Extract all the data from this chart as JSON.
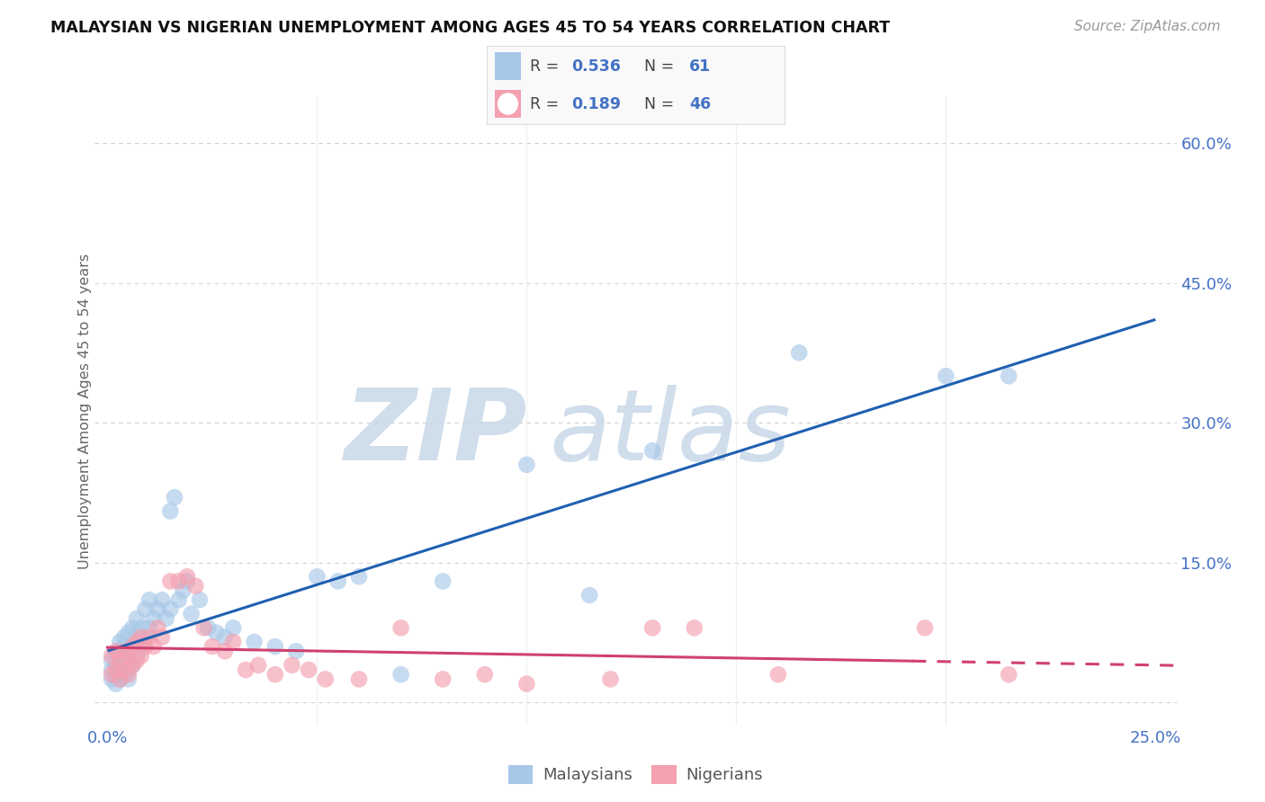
{
  "title": "MALAYSIAN VS NIGERIAN UNEMPLOYMENT AMONG AGES 45 TO 54 YEARS CORRELATION CHART",
  "source": "Source: ZipAtlas.com",
  "ylabel": "Unemployment Among Ages 45 to 54 years",
  "xlim": [
    -0.003,
    0.255
  ],
  "ylim": [
    -0.025,
    0.65
  ],
  "xticks": [
    0.0,
    0.05,
    0.1,
    0.15,
    0.2,
    0.25
  ],
  "xticklabels": [
    "0.0%",
    "",
    "",
    "",
    "",
    "25.0%"
  ],
  "yticks_right": [
    0.0,
    0.15,
    0.3,
    0.45,
    0.6
  ],
  "ytick_right_labels": [
    "",
    "15.0%",
    "30.0%",
    "45.0%",
    "60.0%"
  ],
  "malaysian_color": "#a8c8e8",
  "nigerian_color": "#f4a0b0",
  "malaysian_line_color": "#2060b0",
  "nigerian_line_color": "#d04070",
  "legend_label1": "Malaysians",
  "legend_label2": "Nigerians",
  "watermark_zip": "ZIP",
  "watermark_atlas": "atlas",
  "background_color": "#ffffff",
  "grid_color": "#cccccc",
  "malaysian_x": [
    0.001,
    0.001,
    0.001,
    0.002,
    0.002,
    0.002,
    0.002,
    0.003,
    0.003,
    0.003,
    0.003,
    0.004,
    0.004,
    0.004,
    0.004,
    0.005,
    0.005,
    0.005,
    0.005,
    0.006,
    0.006,
    0.006,
    0.007,
    0.007,
    0.007,
    0.008,
    0.008,
    0.009,
    0.009,
    0.01,
    0.01,
    0.011,
    0.012,
    0.013,
    0.014,
    0.015,
    0.015,
    0.016,
    0.017,
    0.018,
    0.019,
    0.02,
    0.022,
    0.024,
    0.026,
    0.028,
    0.03,
    0.035,
    0.04,
    0.045,
    0.05,
    0.055,
    0.06,
    0.07,
    0.08,
    0.1,
    0.115,
    0.13,
    0.165,
    0.2,
    0.215
  ],
  "malaysian_y": [
    0.025,
    0.035,
    0.045,
    0.02,
    0.03,
    0.04,
    0.05,
    0.025,
    0.035,
    0.055,
    0.065,
    0.03,
    0.04,
    0.06,
    0.07,
    0.025,
    0.035,
    0.055,
    0.075,
    0.04,
    0.06,
    0.08,
    0.05,
    0.07,
    0.09,
    0.06,
    0.08,
    0.07,
    0.1,
    0.08,
    0.11,
    0.09,
    0.1,
    0.11,
    0.09,
    0.1,
    0.205,
    0.22,
    0.11,
    0.12,
    0.13,
    0.095,
    0.11,
    0.08,
    0.075,
    0.07,
    0.08,
    0.065,
    0.06,
    0.055,
    0.135,
    0.13,
    0.135,
    0.03,
    0.13,
    0.255,
    0.115,
    0.27,
    0.375,
    0.35,
    0.35
  ],
  "nigerian_x": [
    0.001,
    0.001,
    0.002,
    0.002,
    0.003,
    0.003,
    0.004,
    0.004,
    0.005,
    0.005,
    0.006,
    0.006,
    0.007,
    0.007,
    0.008,
    0.008,
    0.009,
    0.01,
    0.011,
    0.012,
    0.013,
    0.015,
    0.017,
    0.019,
    0.021,
    0.023,
    0.025,
    0.028,
    0.03,
    0.033,
    0.036,
    0.04,
    0.044,
    0.048,
    0.052,
    0.06,
    0.07,
    0.08,
    0.09,
    0.1,
    0.12,
    0.13,
    0.14,
    0.16,
    0.195,
    0.215
  ],
  "nigerian_y": [
    0.03,
    0.05,
    0.035,
    0.055,
    0.025,
    0.045,
    0.035,
    0.055,
    0.03,
    0.05,
    0.04,
    0.06,
    0.045,
    0.065,
    0.05,
    0.07,
    0.06,
    0.07,
    0.06,
    0.08,
    0.07,
    0.13,
    0.13,
    0.135,
    0.125,
    0.08,
    0.06,
    0.055,
    0.065,
    0.035,
    0.04,
    0.03,
    0.04,
    0.035,
    0.025,
    0.025,
    0.08,
    0.025,
    0.03,
    0.02,
    0.025,
    0.08,
    0.08,
    0.03,
    0.08,
    0.03
  ]
}
